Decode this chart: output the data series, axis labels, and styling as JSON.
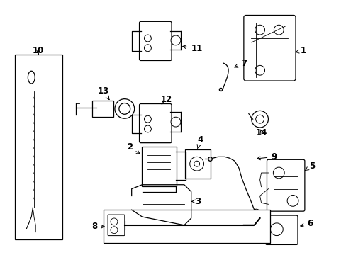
{
  "bg_color": "#ffffff",
  "fig_width": 4.89,
  "fig_height": 3.6,
  "dpi": 100,
  "lw": 0.9,
  "label_fontsize": 8.5
}
